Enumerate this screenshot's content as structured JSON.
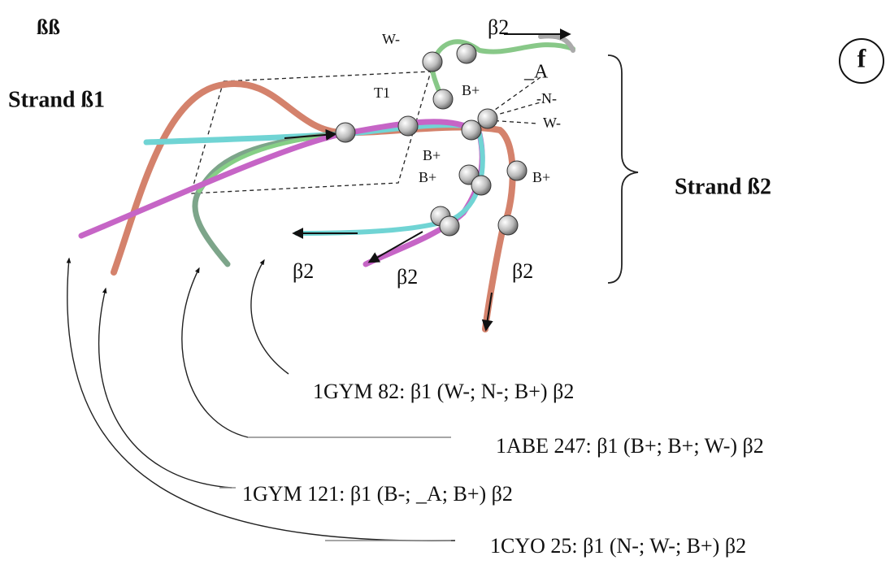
{
  "panel_label": "f",
  "header": "ßß",
  "strand_labels": [
    "Strand ß1",
    "Strand ß2"
  ],
  "residue_labels": [
    "W-",
    "T1",
    "B+",
    "_A",
    "-N-",
    "W-",
    "B+",
    "B+",
    "B+"
  ],
  "end_labels": [
    "β2",
    "β2",
    "β2",
    "β2"
  ],
  "captions": [
    "1GYM 82: β1 (W-; N-; B+) β2",
    "1ABE 247: β1 (B+; B+; W-) β2",
    "1GYM 121: β1 (B-; _A; B+) β2",
    "1CYO 25: β1 (N-; W-; B+) β2"
  ]
}
